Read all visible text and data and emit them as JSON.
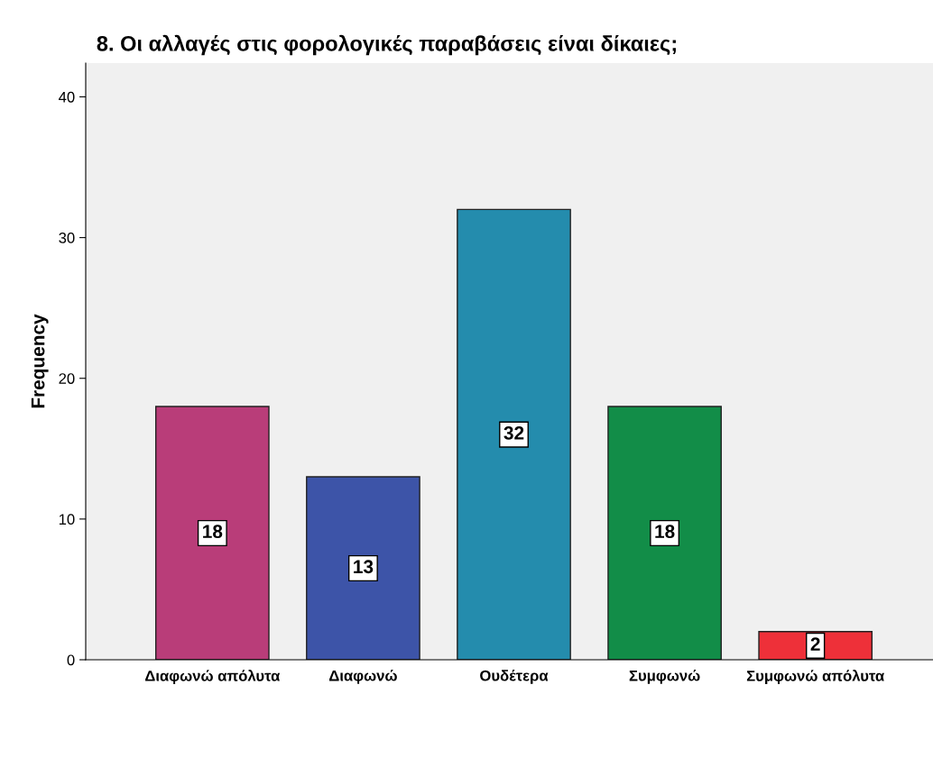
{
  "chart_data": {
    "type": "bar",
    "title": "8. Οι αλλαγές στις φορολογικές παραβάσεις είναι δίκαιες;",
    "ylabel": "Frequency",
    "categories": [
      "Διαφωνώ απόλυτα",
      "Διαφωνώ",
      "Ουδέτερα",
      "Συμφωνώ",
      "Συμφωνώ απόλυτα"
    ],
    "values": [
      18,
      13,
      32,
      18,
      2
    ],
    "colors": [
      "#b93d79",
      "#3d54a8",
      "#248cad",
      "#128d48",
      "#ee3039"
    ],
    "ylim": [
      0,
      42.4
    ],
    "yticks": [
      0,
      10,
      20,
      30,
      40
    ],
    "grid": false,
    "data_labels": true
  }
}
